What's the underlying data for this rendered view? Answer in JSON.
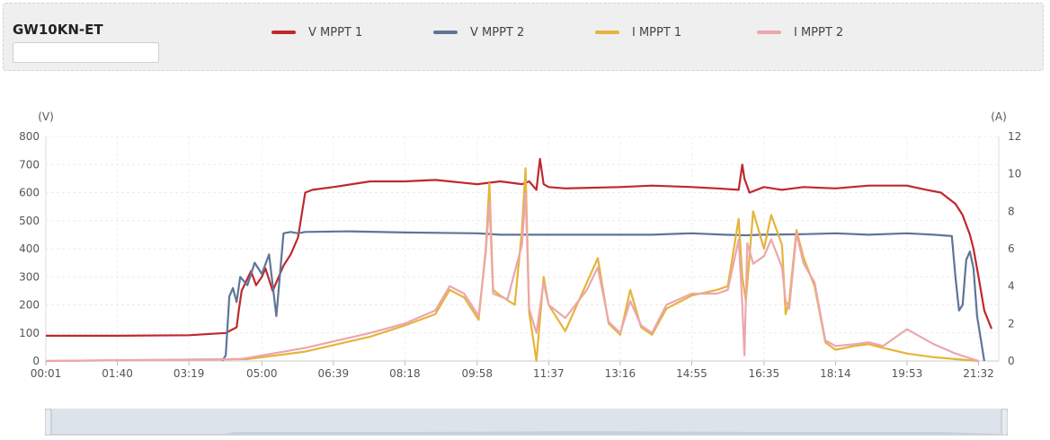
{
  "header": {
    "title": "GW10KN-ET",
    "search_value": ""
  },
  "legend": [
    {
      "label": "V MPPT 1",
      "color": "#c0282e"
    },
    {
      "label": "V MPPT 2",
      "color": "#5f7597"
    },
    {
      "label": "I MPPT 1",
      "color": "#e5b43a"
    },
    {
      "label": "I MPPT 2",
      "color": "#eba7ad"
    }
  ],
  "chart_data": {
    "type": "line",
    "y_left": {
      "unit": "(V)",
      "min": 0,
      "max": 800,
      "ticks": [
        0,
        100,
        200,
        300,
        400,
        500,
        600,
        700,
        800
      ]
    },
    "y_right": {
      "unit": "(A)",
      "min": 0,
      "max": 12,
      "ticks": [
        0,
        2,
        4,
        6,
        8,
        10,
        12
      ]
    },
    "x_ticks": [
      "00:01",
      "01:40",
      "03:19",
      "05:00",
      "06:39",
      "08:18",
      "09:58",
      "11:37",
      "13:16",
      "14:55",
      "16:35",
      "18:14",
      "19:53",
      "21:32"
    ],
    "x_range": [
      "00:01",
      "22:00"
    ],
    "grid": true,
    "legend_position": "top",
    "series": [
      {
        "name": "V MPPT 1",
        "axis": "left",
        "color": "#c0282e",
        "x": [
          "00:01",
          "01:40",
          "03:19",
          "04:10",
          "04:25",
          "04:28",
          "04:32",
          "04:45",
          "04:52",
          "05:00",
          "05:05",
          "05:15",
          "05:30",
          "05:40",
          "05:50",
          "06:00",
          "06:10",
          "06:39",
          "07:30",
          "08:18",
          "09:00",
          "09:58",
          "10:30",
          "11:00",
          "11:10",
          "11:20",
          "11:25",
          "11:30",
          "11:37",
          "12:00",
          "13:16",
          "14:00",
          "14:55",
          "15:30",
          "16:00",
          "16:05",
          "16:08",
          "16:15",
          "16:35",
          "17:00",
          "17:30",
          "18:14",
          "19:00",
          "19:53",
          "20:20",
          "20:40",
          "20:50",
          "21:00",
          "21:10",
          "21:20",
          "21:25",
          "21:32",
          "21:40",
          "21:50"
        ],
        "values": [
          90,
          90,
          92,
          100,
          120,
          180,
          250,
          320,
          270,
          300,
          330,
          250,
          340,
          380,
          440,
          600,
          610,
          620,
          640,
          640,
          645,
          630,
          640,
          630,
          640,
          610,
          720,
          630,
          620,
          615,
          620,
          625,
          620,
          615,
          610,
          700,
          650,
          600,
          620,
          610,
          620,
          615,
          625,
          625,
          610,
          600,
          580,
          560,
          520,
          450,
          400,
          300,
          180,
          115
        ]
      },
      {
        "name": "V MPPT 2",
        "axis": "left",
        "color": "#5f7597",
        "x": [
          "04:05",
          "04:10",
          "04:15",
          "04:20",
          "04:25",
          "04:30",
          "04:40",
          "04:50",
          "05:00",
          "05:10",
          "05:20",
          "05:30",
          "05:40",
          "05:50",
          "06:00",
          "07:00",
          "08:18",
          "09:58",
          "10:30",
          "11:37",
          "12:30",
          "13:16",
          "14:00",
          "14:55",
          "15:40",
          "16:10",
          "16:35",
          "17:30",
          "18:14",
          "19:00",
          "19:53",
          "20:30",
          "20:55",
          "21:00",
          "21:05",
          "21:10",
          "21:15",
          "21:20",
          "21:25",
          "21:30",
          "21:40"
        ],
        "values": [
          0,
          20,
          230,
          260,
          210,
          300,
          270,
          350,
          310,
          380,
          160,
          455,
          460,
          455,
          460,
          462,
          458,
          455,
          450,
          450,
          450,
          450,
          450,
          455,
          450,
          448,
          450,
          452,
          455,
          450,
          455,
          450,
          445,
          300,
          180,
          200,
          360,
          390,
          330,
          160,
          0
        ]
      },
      {
        "name": "I MPPT 1",
        "axis": "right",
        "color": "#e5b43a",
        "x": [
          "00:01",
          "04:40",
          "05:00",
          "06:00",
          "07:30",
          "08:18",
          "09:00",
          "09:20",
          "09:40",
          "10:00",
          "10:10",
          "10:15",
          "10:20",
          "10:30",
          "10:50",
          "11:00",
          "11:05",
          "11:10",
          "11:15",
          "11:20",
          "11:30",
          "11:37",
          "11:45",
          "12:00",
          "12:30",
          "12:45",
          "13:00",
          "13:16",
          "13:30",
          "13:45",
          "14:00",
          "14:20",
          "14:55",
          "15:30",
          "15:45",
          "16:00",
          "16:05",
          "16:10",
          "16:20",
          "16:35",
          "16:45",
          "17:00",
          "17:05",
          "17:10",
          "17:20",
          "17:30",
          "17:45",
          "18:00",
          "18:14",
          "18:40",
          "19:00",
          "19:20",
          "19:53",
          "20:30",
          "21:00",
          "21:32"
        ],
        "values": [
          0,
          0.1,
          0.2,
          0.5,
          1.3,
          1.9,
          2.5,
          3.8,
          3.4,
          2.2,
          6.0,
          9.5,
          3.8,
          3.5,
          3.0,
          7.0,
          10.3,
          2.6,
          1.3,
          0,
          4.5,
          3.0,
          2.5,
          1.6,
          4.2,
          5.5,
          2.0,
          1.4,
          3.8,
          1.8,
          1.4,
          2.8,
          3.5,
          3.8,
          4.0,
          7.6,
          4.5,
          3.2,
          8.0,
          6.0,
          7.8,
          6.2,
          2.5,
          3.2,
          7.0,
          5.5,
          4.0,
          1.0,
          0.6,
          0.8,
          0.9,
          0.7,
          0.4,
          0.2,
          0.1,
          0
        ]
      },
      {
        "name": "I MPPT 2",
        "axis": "right",
        "color": "#eba7ad",
        "x": [
          "00:01",
          "04:30",
          "05:00",
          "06:00",
          "07:30",
          "08:18",
          "09:00",
          "09:20",
          "09:40",
          "10:00",
          "10:10",
          "10:15",
          "10:20",
          "10:40",
          "11:00",
          "11:05",
          "11:10",
          "11:20",
          "11:30",
          "11:37",
          "12:00",
          "12:30",
          "12:45",
          "13:00",
          "13:16",
          "13:30",
          "13:45",
          "14:00",
          "14:20",
          "14:55",
          "15:30",
          "15:45",
          "16:00",
          "16:05",
          "16:08",
          "16:12",
          "16:20",
          "16:35",
          "16:45",
          "17:00",
          "17:05",
          "17:10",
          "17:20",
          "17:30",
          "17:45",
          "18:00",
          "18:14",
          "18:40",
          "19:00",
          "19:20",
          "19:53",
          "20:30",
          "21:00",
          "21:32"
        ],
        "values": [
          0,
          0.1,
          0.3,
          0.7,
          1.5,
          2.0,
          2.7,
          4.0,
          3.6,
          2.4,
          5.8,
          8.5,
          3.6,
          3.3,
          6.2,
          9.0,
          2.8,
          1.5,
          4.2,
          3.0,
          2.3,
          3.8,
          5.0,
          2.1,
          1.5,
          3.2,
          1.9,
          1.5,
          3.0,
          3.6,
          3.6,
          3.8,
          6.5,
          3.0,
          0.3,
          6.3,
          5.2,
          5.6,
          6.5,
          5.0,
          3.2,
          2.8,
          6.8,
          5.2,
          4.2,
          1.1,
          0.8,
          0.9,
          1.0,
          0.8,
          1.7,
          0.9,
          0.4,
          0
        ]
      }
    ]
  }
}
